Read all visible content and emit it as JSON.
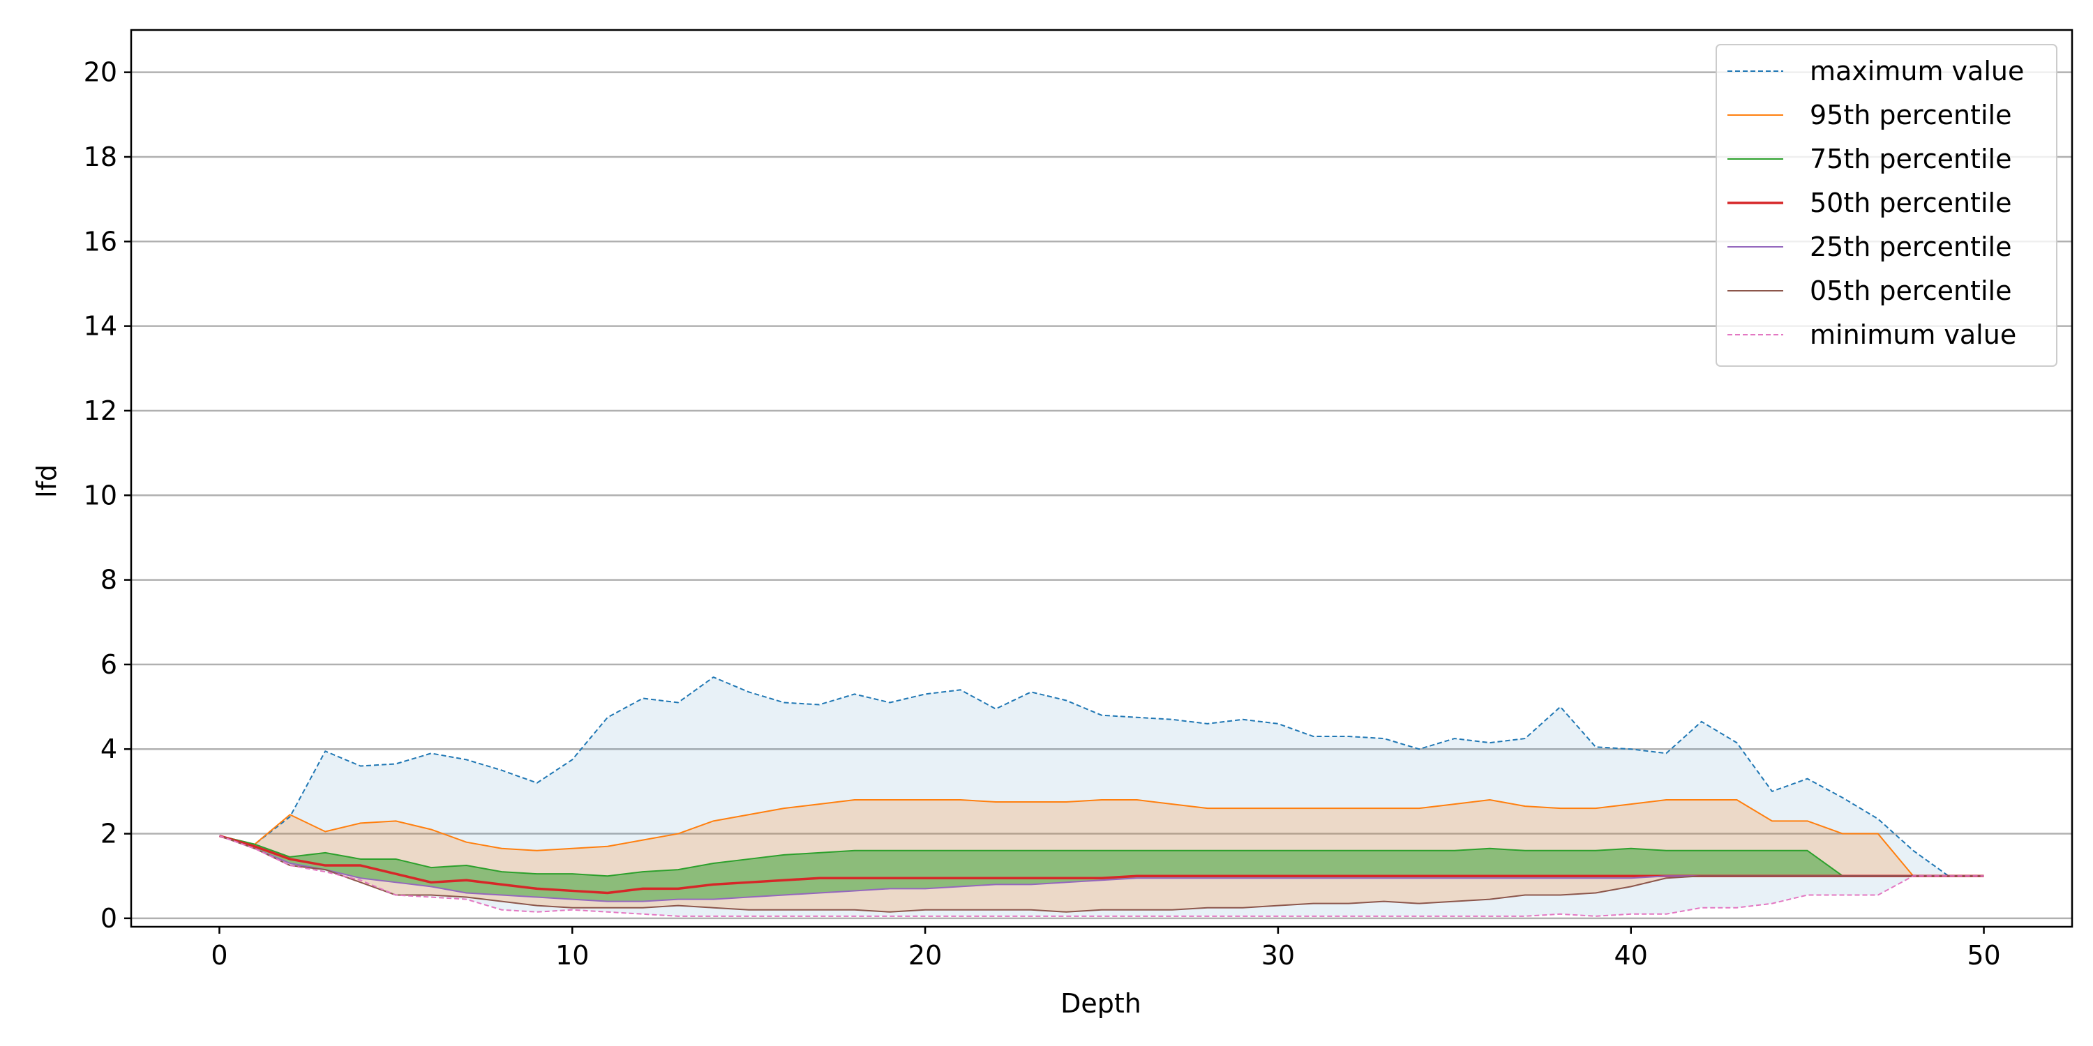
{
  "chart_data": {
    "type": "area",
    "title": "",
    "xlabel": "Depth",
    "ylabel": "lfd",
    "xlim": [
      -2.5,
      52.5
    ],
    "ylim": [
      -0.2,
      21
    ],
    "x_ticks": [
      0,
      10,
      20,
      30,
      40,
      50
    ],
    "y_ticks": [
      0,
      2,
      4,
      6,
      8,
      10,
      12,
      14,
      16,
      18,
      20
    ],
    "grid": "horizontal",
    "legend_position": "top-right",
    "x": [
      0,
      1,
      2,
      3,
      4,
      5,
      6,
      7,
      8,
      9,
      10,
      11,
      12,
      13,
      14,
      15,
      16,
      17,
      18,
      19,
      20,
      21,
      22,
      23,
      24,
      25,
      26,
      27,
      28,
      29,
      30,
      31,
      32,
      33,
      34,
      35,
      36,
      37,
      38,
      39,
      40,
      41,
      42,
      43,
      44,
      45,
      46,
      47,
      48,
      49,
      50
    ],
    "series": [
      {
        "name": "maximum value",
        "color": "#1f77b4",
        "style": "dashed",
        "values": [
          1.95,
          1.75,
          2.4,
          3.95,
          3.6,
          3.65,
          3.9,
          3.75,
          3.5,
          3.2,
          3.75,
          4.75,
          5.2,
          5.1,
          5.7,
          5.35,
          5.1,
          5.05,
          5.3,
          5.1,
          5.3,
          5.4,
          4.95,
          5.35,
          5.15,
          4.8,
          4.75,
          4.7,
          4.6,
          4.7,
          4.6,
          4.3,
          4.3,
          4.25,
          4.0,
          4.25,
          4.15,
          4.25,
          5.0,
          4.05,
          4.0,
          3.9,
          4.65,
          4.15,
          3.0,
          3.3,
          2.85,
          2.35,
          1.6,
          1.0,
          1.0
        ]
      },
      {
        "name": "95th percentile",
        "color": "#ff7f0e",
        "style": "solid",
        "values": [
          1.95,
          1.75,
          2.45,
          2.05,
          2.25,
          2.3,
          2.1,
          1.8,
          1.65,
          1.6,
          1.65,
          1.7,
          1.85,
          2.0,
          2.3,
          2.45,
          2.6,
          2.7,
          2.8,
          2.8,
          2.8,
          2.8,
          2.75,
          2.75,
          2.75,
          2.8,
          2.8,
          2.7,
          2.6,
          2.6,
          2.6,
          2.6,
          2.6,
          2.6,
          2.6,
          2.7,
          2.8,
          2.65,
          2.6,
          2.6,
          2.7,
          2.8,
          2.8,
          2.8,
          2.3,
          2.3,
          2.0,
          2.0,
          1.0,
          1.0,
          1.0
        ]
      },
      {
        "name": "75th percentile",
        "color": "#2ca02c",
        "style": "solid",
        "values": [
          1.95,
          1.75,
          1.45,
          1.55,
          1.4,
          1.4,
          1.2,
          1.25,
          1.1,
          1.05,
          1.05,
          1.0,
          1.1,
          1.15,
          1.3,
          1.4,
          1.5,
          1.55,
          1.6,
          1.6,
          1.6,
          1.6,
          1.6,
          1.6,
          1.6,
          1.6,
          1.6,
          1.6,
          1.6,
          1.6,
          1.6,
          1.6,
          1.6,
          1.6,
          1.6,
          1.6,
          1.65,
          1.6,
          1.6,
          1.6,
          1.65,
          1.6,
          1.6,
          1.6,
          1.6,
          1.6,
          1.0,
          1.0,
          1.0,
          1.0,
          1.0
        ]
      },
      {
        "name": "50th percentile",
        "color": "#d62728",
        "style": "solid",
        "values": [
          1.95,
          1.7,
          1.4,
          1.25,
          1.25,
          1.05,
          0.85,
          0.9,
          0.8,
          0.7,
          0.65,
          0.6,
          0.7,
          0.7,
          0.8,
          0.85,
          0.9,
          0.95,
          0.95,
          0.95,
          0.95,
          0.95,
          0.95,
          0.95,
          0.95,
          0.95,
          1.0,
          1.0,
          1.0,
          1.0,
          1.0,
          1.0,
          1.0,
          1.0,
          1.0,
          1.0,
          1.0,
          1.0,
          1.0,
          1.0,
          1.0,
          1.0,
          1.0,
          1.0,
          1.0,
          1.0,
          1.0,
          1.0,
          1.0,
          1.0,
          1.0
        ]
      },
      {
        "name": "25th percentile",
        "color": "#9467bd",
        "style": "solid",
        "values": [
          1.95,
          1.65,
          1.3,
          1.15,
          0.95,
          0.85,
          0.75,
          0.6,
          0.55,
          0.5,
          0.45,
          0.4,
          0.4,
          0.45,
          0.45,
          0.5,
          0.55,
          0.6,
          0.65,
          0.7,
          0.7,
          0.75,
          0.8,
          0.8,
          0.85,
          0.9,
          0.95,
          0.95,
          0.95,
          0.95,
          0.95,
          0.95,
          0.95,
          0.95,
          0.95,
          0.95,
          0.95,
          0.95,
          0.95,
          0.95,
          0.95,
          1.0,
          1.0,
          1.0,
          1.0,
          1.0,
          1.0,
          1.0,
          1.0,
          1.0,
          1.0
        ]
      },
      {
        "name": "05th percentile",
        "color": "#8c564b",
        "style": "solid",
        "values": [
          1.95,
          1.65,
          1.25,
          1.15,
          0.85,
          0.55,
          0.55,
          0.5,
          0.4,
          0.3,
          0.25,
          0.25,
          0.25,
          0.3,
          0.25,
          0.2,
          0.2,
          0.2,
          0.2,
          0.15,
          0.2,
          0.2,
          0.2,
          0.2,
          0.15,
          0.2,
          0.2,
          0.2,
          0.25,
          0.25,
          0.3,
          0.35,
          0.35,
          0.4,
          0.35,
          0.4,
          0.45,
          0.55,
          0.55,
          0.6,
          0.75,
          0.95,
          1.0,
          1.0,
          1.0,
          1.0,
          1.0,
          1.0,
          1.0,
          1.0,
          1.0
        ]
      },
      {
        "name": "minimum value",
        "color": "#e377c2",
        "style": "dashed",
        "values": [
          1.95,
          1.65,
          1.25,
          1.1,
          0.9,
          0.55,
          0.5,
          0.45,
          0.2,
          0.15,
          0.2,
          0.15,
          0.1,
          0.05,
          0.05,
          0.05,
          0.05,
          0.05,
          0.05,
          0.05,
          0.05,
          0.05,
          0.05,
          0.05,
          0.05,
          0.05,
          0.05,
          0.05,
          0.05,
          0.05,
          0.05,
          0.05,
          0.05,
          0.05,
          0.05,
          0.05,
          0.05,
          0.05,
          0.1,
          0.05,
          0.1,
          0.1,
          0.25,
          0.25,
          0.35,
          0.55,
          0.55,
          0.55,
          1.0,
          1.0,
          1.0
        ]
      }
    ],
    "fill_bands": [
      {
        "upper": "maximum value",
        "lower": "minimum value",
        "color": "#1f77b4",
        "opacity": 0.1
      },
      {
        "upper": "95th percentile",
        "lower": "05th percentile",
        "color": "#ff7f0e",
        "opacity": 0.2
      },
      {
        "upper": "75th percentile",
        "lower": "25th percentile",
        "color": "#2ca02c",
        "opacity": 0.5
      }
    ]
  }
}
